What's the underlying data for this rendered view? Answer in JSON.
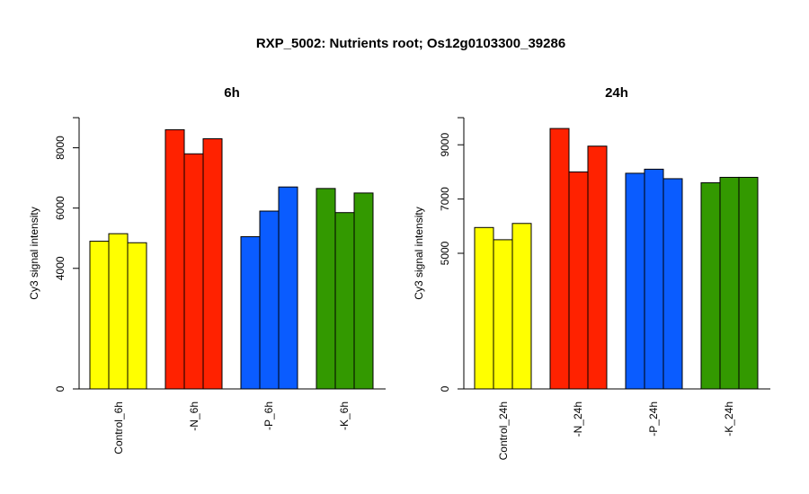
{
  "title": "RXP_5002: Nutrients root; Os12g0103300_39286",
  "chart_data": [
    {
      "type": "bar",
      "title": "6h",
      "ylabel": "Cy3 signal intensity",
      "xlabel": "",
      "ylim": [
        0,
        9000
      ],
      "yticks": [
        0,
        4000,
        6000,
        8000
      ],
      "grid": false,
      "groups": [
        {
          "label": "Control_6h",
          "color": "#ffff00",
          "values": [
            4900,
            5150,
            4850
          ]
        },
        {
          "label": "-N_6h",
          "color": "#ff2200",
          "values": [
            8600,
            7800,
            8300
          ]
        },
        {
          "label": "-P_6h",
          "color": "#0a5cff",
          "values": [
            5050,
            5900,
            6700
          ]
        },
        {
          "label": "-K_6h",
          "color": "#339900",
          "values": [
            6650,
            5850,
            6500
          ]
        }
      ]
    },
    {
      "type": "bar",
      "title": "24h",
      "ylabel": "Cy3 signal intensity",
      "xlabel": "",
      "ylim": [
        0,
        10000
      ],
      "yticks": [
        0,
        5000,
        7000,
        9000
      ],
      "grid": false,
      "groups": [
        {
          "label": "Control_24h",
          "color": "#ffff00",
          "values": [
            5950,
            5500,
            6100
          ]
        },
        {
          "label": "-N_24h",
          "color": "#ff2200",
          "values": [
            9600,
            8000,
            8950
          ]
        },
        {
          "label": "-P_24h",
          "color": "#0a5cff",
          "values": [
            7950,
            8100,
            7750
          ]
        },
        {
          "label": "-K_24h",
          "color": "#339900",
          "values": [
            7600,
            7800,
            7800
          ]
        }
      ]
    }
  ]
}
